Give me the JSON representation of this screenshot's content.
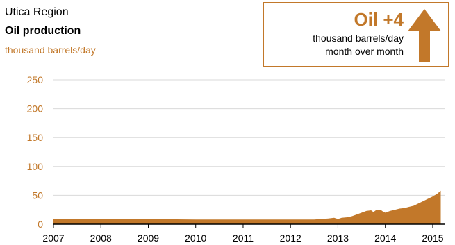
{
  "header": {
    "region": "Utica Region",
    "title": "Oil production",
    "unit": "thousand barrels/day"
  },
  "callout": {
    "headline": "Oil +4",
    "line1": "thousand barrels/day",
    "line2": "month over month",
    "direction": "up",
    "icon": "up-arrow-icon"
  },
  "colors": {
    "accent": "#c2782a",
    "area": "#c2782a",
    "grid": "#d9d9d9",
    "axis": "#000000"
  },
  "chart_data": {
    "type": "area",
    "title": "Oil production",
    "ylabel": "thousand barrels/day",
    "xlim": [
      2007,
      2015.25
    ],
    "ylim": [
      0,
      250
    ],
    "yticks": [
      0,
      50,
      100,
      150,
      200,
      250
    ],
    "xticks": [
      "2007",
      "2008",
      "2009",
      "2010",
      "2011",
      "2012",
      "2013",
      "2014",
      "2015"
    ],
    "grid": true,
    "series": [
      {
        "x": [
          2007.0,
          2008.0,
          2009.0,
          2010.0,
          2011.0,
          2012.0,
          2012.5,
          2012.8,
          2012.92,
          2013.0,
          2013.08,
          2013.2,
          2013.3,
          2013.4,
          2013.5,
          2013.6,
          2013.7,
          2013.75,
          2013.8,
          2013.9,
          2013.95,
          2014.0,
          2014.1,
          2014.2,
          2014.3,
          2014.4,
          2014.5,
          2014.6,
          2014.7,
          2014.8,
          2014.9,
          2015.0,
          2015.1,
          2015.17
        ],
        "values": [
          9,
          9,
          9,
          8,
          8,
          8,
          8,
          10,
          11,
          9,
          11,
          12,
          14,
          17,
          20,
          23,
          24,
          21,
          24,
          25,
          22,
          20,
          23,
          25,
          27,
          28,
          30,
          32,
          36,
          40,
          44,
          48,
          53,
          58
        ]
      }
    ]
  }
}
